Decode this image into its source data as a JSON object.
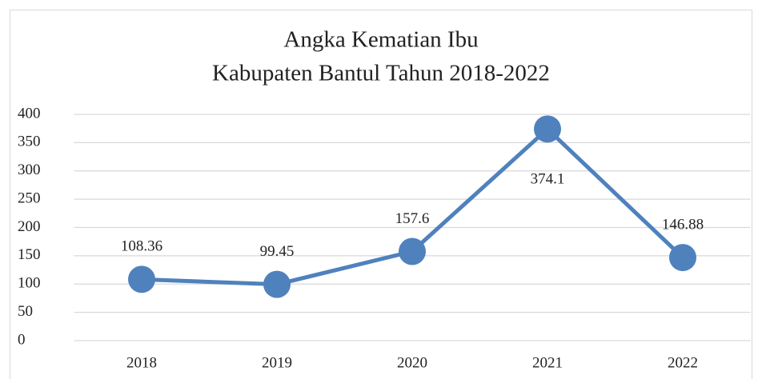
{
  "chart_data": {
    "type": "line",
    "title": [
      "Angka Kematian Ibu",
      "Kabupaten Bantul Tahun 2018-2022"
    ],
    "categories": [
      "2018",
      "2019",
      "2020",
      "2021",
      "2022"
    ],
    "series": [
      {
        "color": "#4f81bd",
        "values": [
          108.36,
          99.45,
          157.6,
          374.1,
          146.88
        ]
      }
    ],
    "ylim": [
      0,
      400
    ],
    "yticks": [
      0,
      50,
      100,
      150,
      200,
      250,
      300,
      350,
      400
    ],
    "grid": true
  }
}
